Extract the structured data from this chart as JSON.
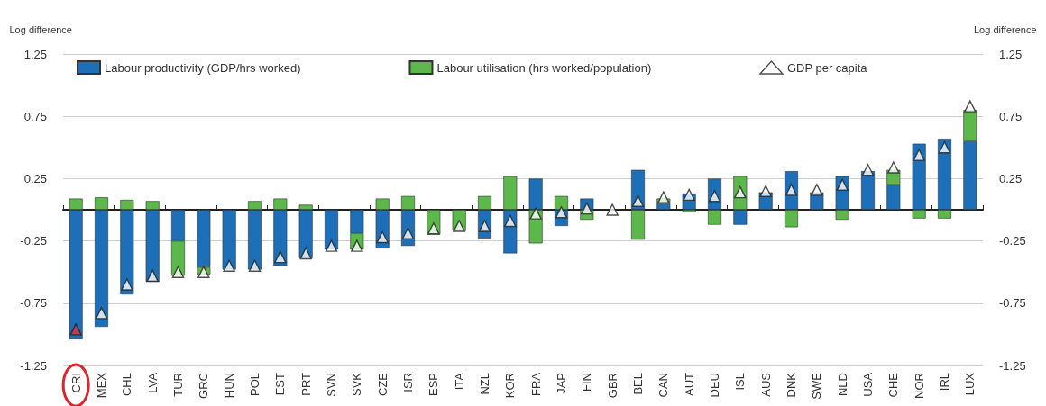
{
  "chart_data": {
    "type": "bar",
    "stacked": true,
    "ylabel": "Log difference",
    "y2label": "Log difference",
    "categories": [
      "CRI",
      "MEX",
      "CHL",
      "LVA",
      "TUR",
      "GRC",
      "HUN",
      "POL",
      "EST",
      "PRT",
      "SVN",
      "SVK",
      "CZE",
      "ISR",
      "ESP",
      "ITA",
      "NZL",
      "KOR",
      "FRA",
      "JAP",
      "FIN",
      "GBR",
      "BEL",
      "CAN",
      "AUT",
      "DEU",
      "ISL",
      "AUS",
      "DNK",
      "SWE",
      "NLD",
      "USA",
      "CHE",
      "NOR",
      "IRL",
      "LUX"
    ],
    "series": [
      {
        "name": "Labour productivity (GDP/hrs worked)",
        "type": "bar",
        "color": "#1d6fb8",
        "values": [
          -1.04,
          -0.94,
          -0.68,
          -0.58,
          -0.25,
          -0.46,
          -0.48,
          -0.48,
          -0.45,
          -0.39,
          -0.32,
          -0.19,
          -0.31,
          -0.29,
          null,
          null,
          -0.23,
          -0.35,
          0.25,
          -0.13,
          0.09,
          null,
          0.32,
          0.05,
          0.13,
          0.25,
          -0.12,
          0.14,
          0.31,
          0.14,
          0.27,
          0.31,
          0.2,
          0.53,
          0.57,
          0.55
        ]
      },
      {
        "name": "Labour utilisation (hrs worked/population)",
        "type": "bar",
        "color": "#5cb84a",
        "values": [
          0.09,
          0.1,
          0.08,
          0.07,
          -0.28,
          -0.06,
          null,
          0.07,
          0.09,
          0.04,
          null,
          -0.13,
          0.09,
          0.11,
          -0.2,
          -0.17,
          0.11,
          0.27,
          -0.27,
          0.11,
          -0.08,
          null,
          -0.24,
          0.04,
          -0.02,
          -0.12,
          0.27,
          null,
          -0.14,
          null,
          -0.08,
          null,
          0.12,
          -0.07,
          -0.07,
          0.25
        ]
      },
      {
        "name": "GDP per capita",
        "type": "scatter",
        "marker": "triangle",
        "color": "#ffffff",
        "colors": [
          "#e0353b",
          "#ffffff",
          "#ffffff",
          "#ffffff",
          "#ffffff",
          "#ffffff",
          "#ffffff",
          "#ffffff",
          "#ffffff",
          "#ffffff",
          "#ffffff",
          "#ffffff",
          "#ffffff",
          "#ffffff",
          "#ffffff",
          "#ffffff",
          "#ffffff",
          "#ffffff",
          "#ffffff",
          "#ffffff",
          "#ffffff",
          "#ffffff",
          "#ffffff",
          "#ffffff",
          "#ffffff",
          "#ffffff",
          "#ffffff",
          "#ffffff",
          "#ffffff",
          "#ffffff",
          "#ffffff",
          "#ffffff",
          "#ffffff",
          "#ffffff",
          "#ffffff",
          "#ffffff"
        ],
        "values": [
          -0.96,
          -0.83,
          -0.6,
          -0.53,
          -0.5,
          -0.5,
          -0.45,
          -0.45,
          -0.38,
          -0.35,
          -0.29,
          -0.29,
          -0.22,
          -0.19,
          -0.15,
          -0.13,
          -0.13,
          -0.09,
          -0.03,
          -0.02,
          0.01,
          0.0,
          0.07,
          0.1,
          0.12,
          0.11,
          0.14,
          0.15,
          0.16,
          0.16,
          0.2,
          0.32,
          0.34,
          0.44,
          0.5,
          0.83
        ]
      }
    ],
    "ylim": [
      -1.25,
      1.25
    ],
    "yticks": [
      -1.25,
      -0.75,
      -0.25,
      0.25,
      0.75,
      1.25
    ],
    "y2lim": [
      -1.25,
      1.25
    ],
    "y2ticks": [
      -1.25,
      -0.75,
      -0.25,
      0.25,
      0.75,
      1.25
    ],
    "grid": "y",
    "legend": "top"
  }
}
